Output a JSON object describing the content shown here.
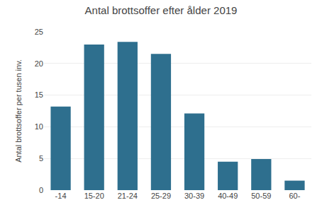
{
  "chart_data": {
    "type": "bar",
    "title": "Antal brottsoffer efter ålder 2019",
    "ylabel": "Antal brottsoffer per tusen inv.",
    "categories": [
      "-14",
      "15-20",
      "21-24",
      "25-29",
      "30-39",
      "40-49",
      "50-59",
      "60-"
    ],
    "values": [
      13.2,
      23.0,
      23.4,
      21.5,
      12.1,
      4.5,
      4.9,
      1.5
    ],
    "color": "#2E6F8E",
    "ylim": [
      0,
      25
    ],
    "yticks": [
      0,
      5,
      10,
      15,
      20,
      25
    ],
    "grid": true
  }
}
